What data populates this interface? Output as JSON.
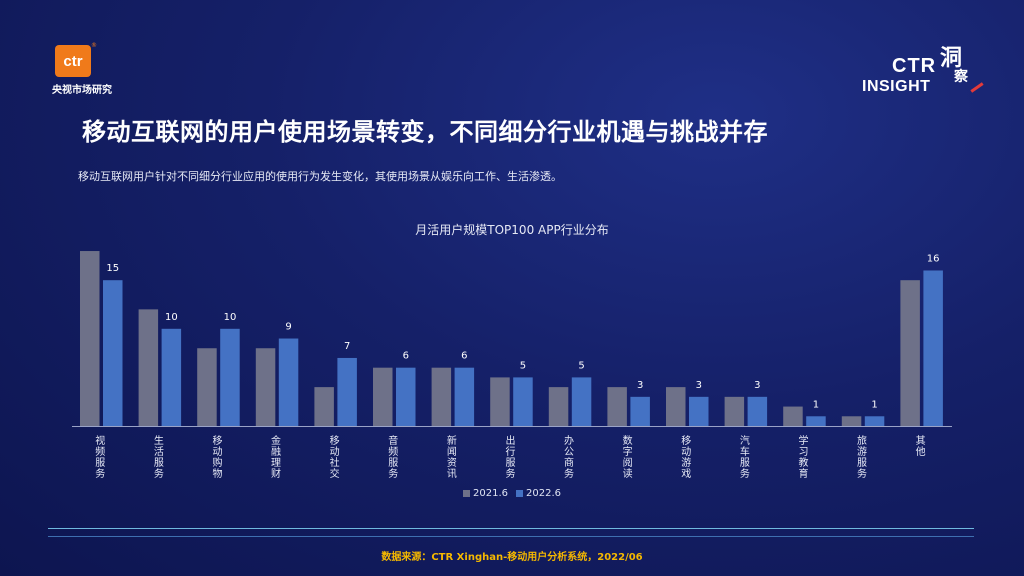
{
  "brand": {
    "logo_text": "ctr",
    "logo_caption": "央视市场研究",
    "insight_ctr": "CTR",
    "insight_label": "INSIGHT",
    "insight_cn_1": "洞",
    "insight_cn_2": "察"
  },
  "headline": "移动互联网的用户使用场景转变，不同细分行业机遇与挑战并存",
  "subtitle": "移动互联网用户针对不同细分行业应用的使用行为发生变化，其使用场景从娱乐向工作、生活渗透。",
  "source": "数据来源：CTR Xinghan-移动用户分析系统，2022/06",
  "colors": {
    "series_2021": "#6e7189",
    "series_2022": "#4472c4",
    "background": "#152068",
    "source_text": "#f5b800"
  },
  "chart_data": {
    "type": "bar",
    "title": "月活用户规模TOP100 APP行业分布",
    "categories": [
      "视频服务",
      "生活服务",
      "移动购物",
      "金融理财",
      "移动社交",
      "音频服务",
      "新闻资讯",
      "出行服务",
      "办公商务",
      "数字阅读",
      "移动游戏",
      "汽车服务",
      "学习教育",
      "旅游服务",
      "其他"
    ],
    "series": [
      {
        "name": "2021.6",
        "values": [
          18,
          12,
          8,
          8,
          4,
          6,
          6,
          5,
          4,
          4,
          4,
          3,
          2,
          1,
          15
        ]
      },
      {
        "name": "2022.6",
        "values": [
          15,
          10,
          10,
          9,
          7,
          6,
          6,
          5,
          5,
          3,
          3,
          3,
          1,
          1,
          16
        ]
      }
    ],
    "data_labels": [
      "15",
      "10",
      "10",
      "9",
      "7",
      "6",
      "6",
      "5",
      "5",
      "3",
      "3",
      "3",
      "1",
      "1",
      "16"
    ],
    "ylim": [
      0,
      18
    ],
    "legend_position": "bottom",
    "grid": false
  }
}
